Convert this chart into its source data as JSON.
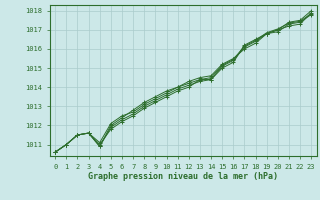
{
  "title": "Graphe pression niveau de la mer (hPa)",
  "bg_color": "#cce8e8",
  "grid_color": "#aacccc",
  "line_color": "#2d6e2d",
  "text_color": "#2d6e2d",
  "xlim": [
    -0.5,
    23.5
  ],
  "ylim": [
    1010.4,
    1018.3
  ],
  "xticks": [
    0,
    1,
    2,
    3,
    4,
    5,
    6,
    7,
    8,
    9,
    10,
    11,
    12,
    13,
    14,
    15,
    16,
    17,
    18,
    19,
    20,
    21,
    22,
    23
  ],
  "yticks": [
    1011,
    1012,
    1013,
    1014,
    1015,
    1016,
    1017,
    1018
  ],
  "series": [
    [
      1010.6,
      1011.0,
      1011.5,
      1011.6,
      1011.0,
      1011.8,
      1012.2,
      1012.5,
      1012.9,
      1013.2,
      1013.5,
      1013.8,
      1014.0,
      1014.4,
      1014.4,
      1015.0,
      1015.3,
      1016.2,
      1016.5,
      1016.8,
      1017.0,
      1017.2,
      1017.3,
      1017.9
    ],
    [
      1010.6,
      1011.0,
      1011.5,
      1011.6,
      1010.9,
      1012.0,
      1012.4,
      1012.8,
      1013.2,
      1013.5,
      1013.8,
      1014.0,
      1014.3,
      1014.5,
      1014.6,
      1015.2,
      1015.5,
      1016.0,
      1016.3,
      1016.8,
      1017.0,
      1017.4,
      1017.5,
      1018.0
    ],
    [
      1010.6,
      1011.0,
      1011.5,
      1011.6,
      1010.9,
      1011.9,
      1012.3,
      1012.6,
      1013.0,
      1013.3,
      1013.6,
      1013.9,
      1014.1,
      1014.3,
      1014.4,
      1015.1,
      1015.4,
      1016.1,
      1016.4,
      1016.8,
      1016.9,
      1017.3,
      1017.4,
      1017.8
    ],
    [
      1010.6,
      1011.0,
      1011.5,
      1011.6,
      1011.1,
      1012.1,
      1012.5,
      1012.7,
      1013.1,
      1013.4,
      1013.7,
      1014.0,
      1014.2,
      1014.4,
      1014.5,
      1015.15,
      1015.45,
      1016.15,
      1016.45,
      1016.85,
      1017.05,
      1017.35,
      1017.45,
      1017.85
    ]
  ]
}
